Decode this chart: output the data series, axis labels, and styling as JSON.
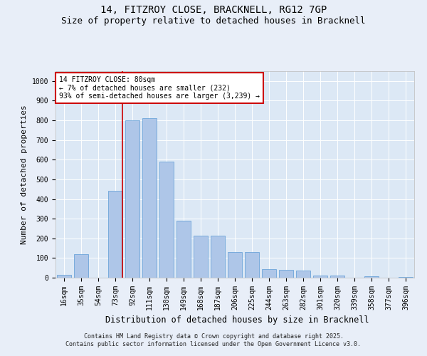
{
  "title_line1": "14, FITZROY CLOSE, BRACKNELL, RG12 7GP",
  "title_line2": "Size of property relative to detached houses in Bracknell",
  "xlabel": "Distribution of detached houses by size in Bracknell",
  "ylabel": "Number of detached properties",
  "categories": [
    "16sqm",
    "35sqm",
    "54sqm",
    "73sqm",
    "92sqm",
    "111sqm",
    "130sqm",
    "149sqm",
    "168sqm",
    "187sqm",
    "206sqm",
    "225sqm",
    "244sqm",
    "263sqm",
    "282sqm",
    "301sqm",
    "320sqm",
    "339sqm",
    "358sqm",
    "377sqm",
    "396sqm"
  ],
  "bar_heights": [
    15,
    120,
    0,
    440,
    800,
    810,
    590,
    290,
    215,
    215,
    130,
    130,
    42,
    40,
    35,
    12,
    10,
    0,
    7,
    0,
    5
  ],
  "bar_color": "#aec6e8",
  "bar_edge_color": "#5b9bd5",
  "fig_bg_color": "#e8eef8",
  "plot_bg_color": "#dce8f5",
  "grid_color": "#ffffff",
  "vline_color": "#cc0000",
  "vline_pos": 3.425,
  "annotation_text": "14 FITZROY CLOSE: 80sqm\n← 7% of detached houses are smaller (232)\n93% of semi-detached houses are larger (3,239) →",
  "annotation_box_color": "#cc0000",
  "ylim": [
    0,
    1050
  ],
  "yticks": [
    0,
    100,
    200,
    300,
    400,
    500,
    600,
    700,
    800,
    900,
    1000
  ],
  "footer_line1": "Contains HM Land Registry data © Crown copyright and database right 2025.",
  "footer_line2": "Contains public sector information licensed under the Open Government Licence v3.0.",
  "title_fontsize": 10,
  "subtitle_fontsize": 9,
  "axis_label_fontsize": 8,
  "tick_fontsize": 7,
  "annotation_fontsize": 7,
  "footer_fontsize": 6
}
